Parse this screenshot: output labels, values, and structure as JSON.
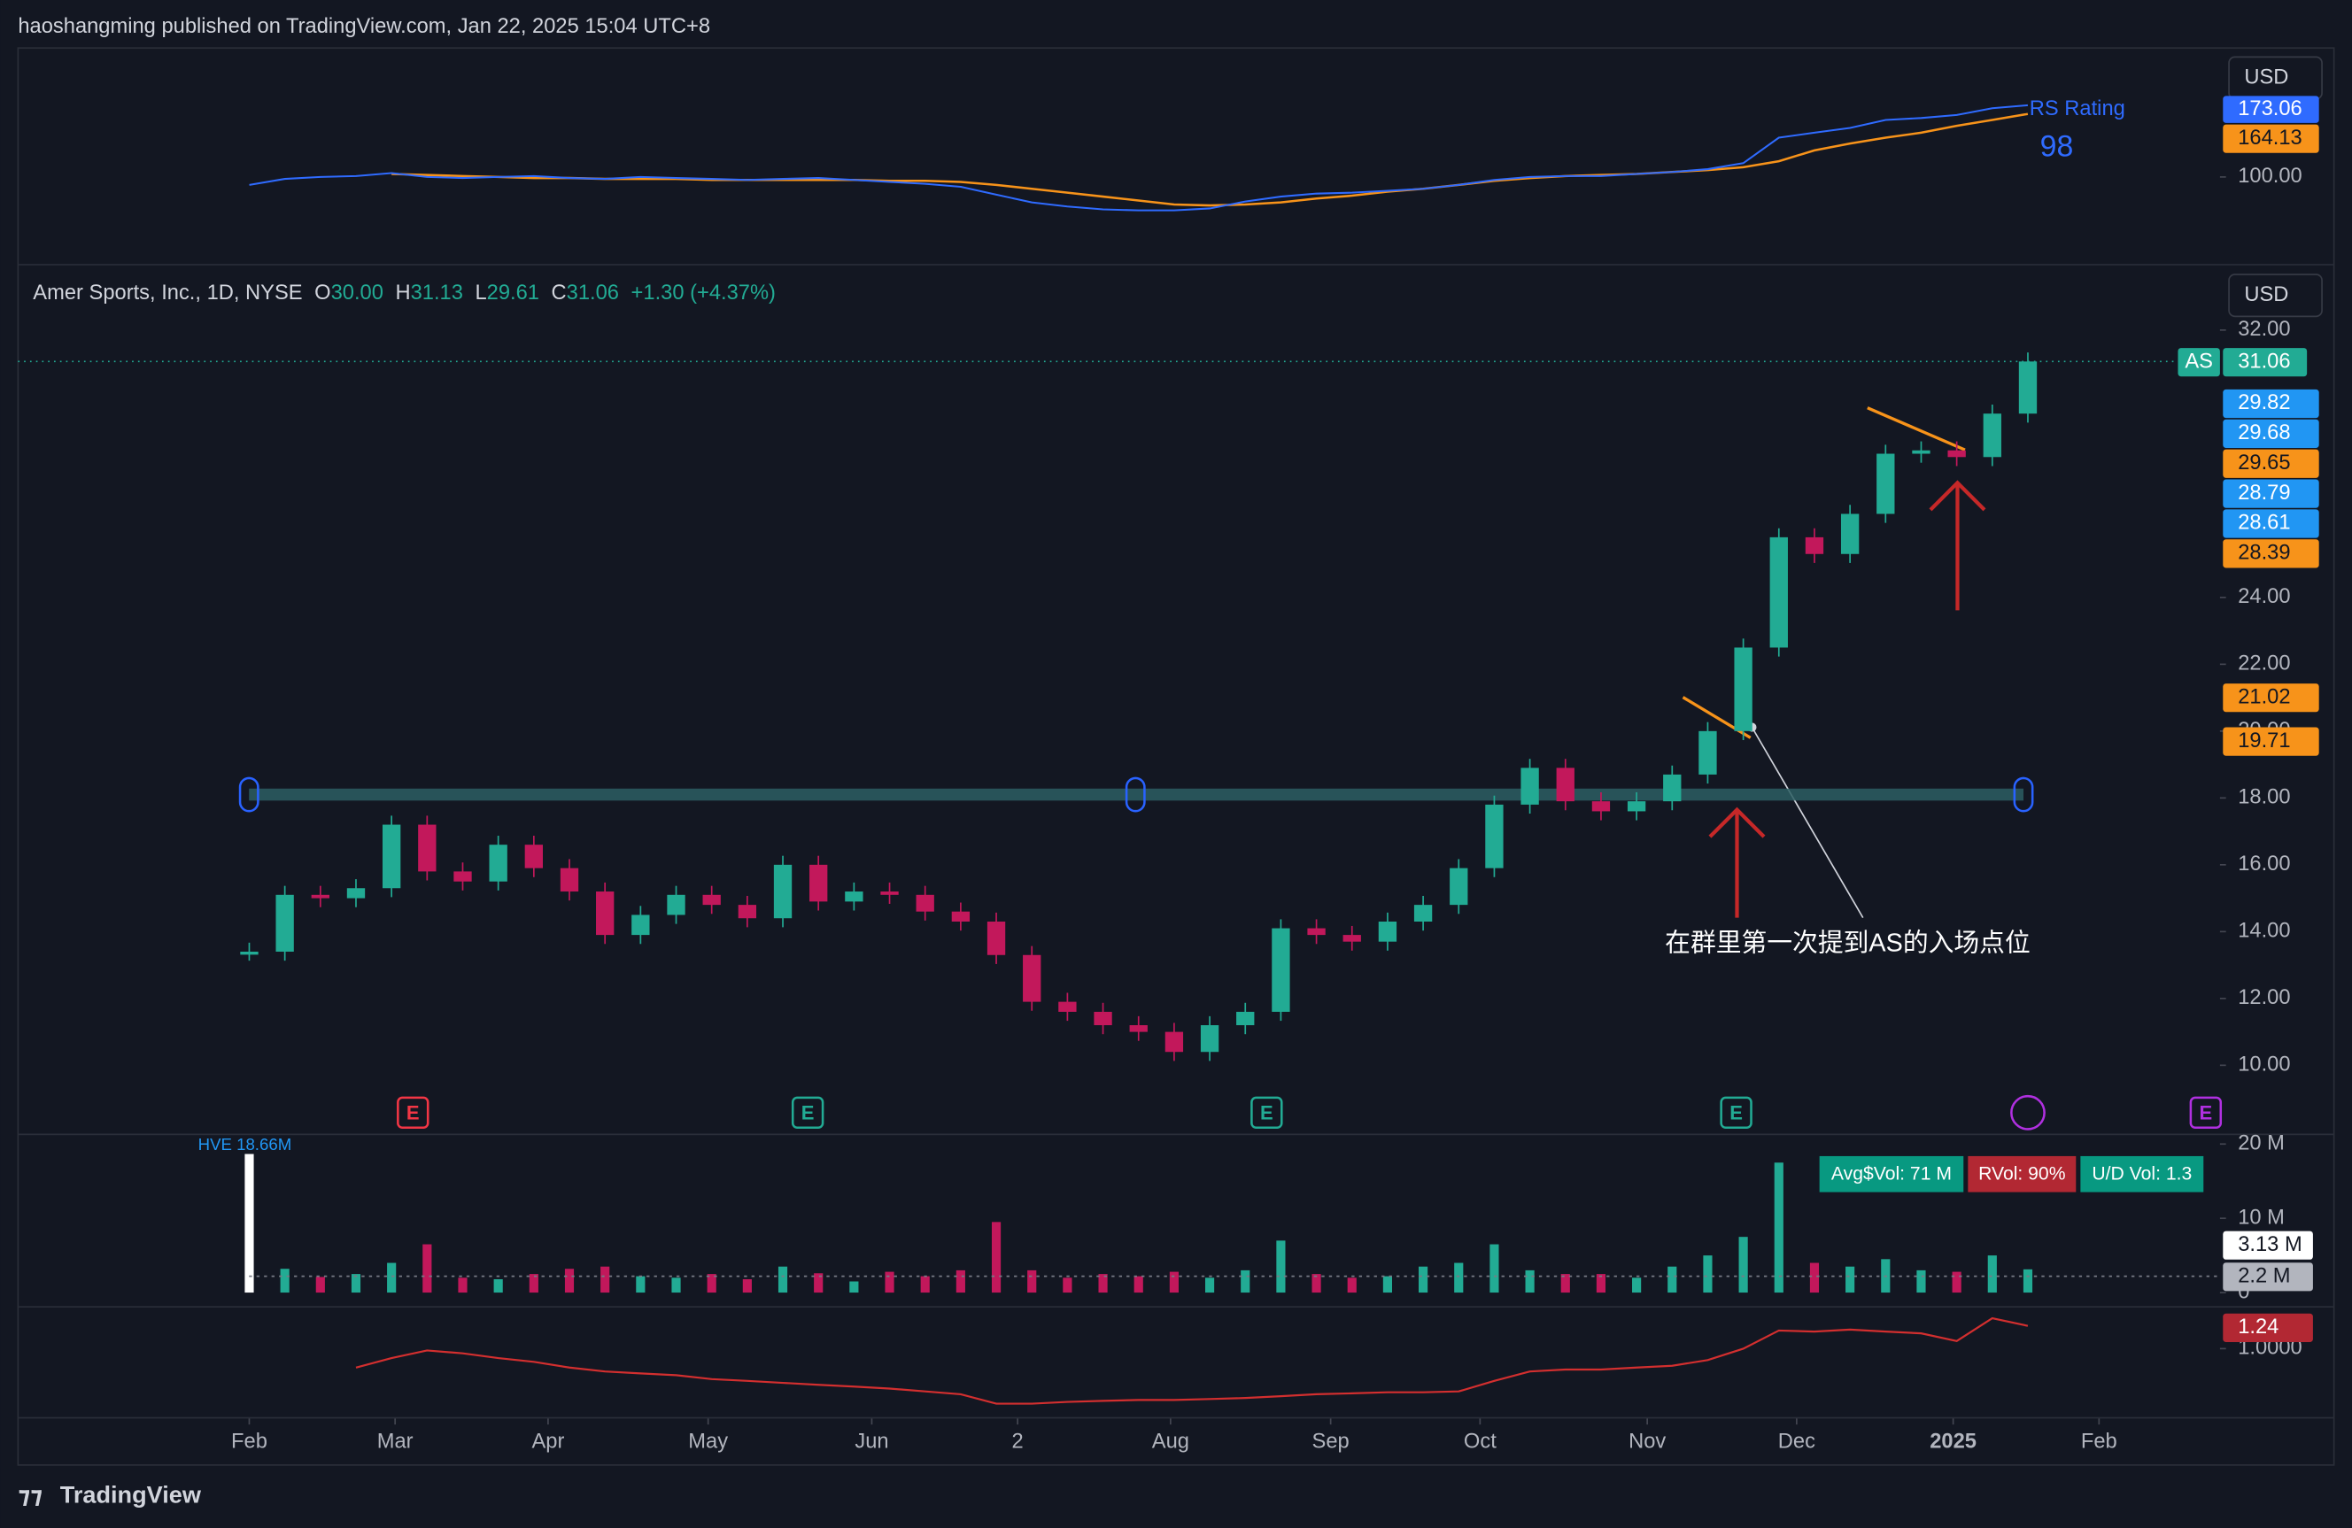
{
  "publisher": "haoshangming published on TradingView.com, Jan 22, 2025 15:04 UTC+8",
  "footer": "TradingView",
  "chart_data": {
    "type": "candlestick",
    "currency": "USD",
    "legend": {
      "symbol": "Amer Sports, Inc., 1D, NYSE",
      "o_label": "O",
      "open": "30.00",
      "h_label": "H",
      "high": "31.13",
      "l_label": "L",
      "low": "29.61",
      "c_label": "C",
      "close": "31.06",
      "change": "+1.30 (+4.37%)"
    },
    "up_color": "#22ab94",
    "down_color": "#c2185b",
    "x": [
      0,
      1,
      2,
      3,
      4,
      5,
      6,
      7,
      8,
      9,
      10,
      11,
      12,
      13,
      14,
      15,
      16,
      17,
      18,
      19,
      20,
      21,
      22,
      23,
      24,
      25,
      26,
      27,
      28,
      29,
      30,
      31,
      32,
      33,
      34,
      35,
      36,
      37,
      38,
      39,
      40,
      41,
      42,
      43,
      44,
      45,
      46,
      47,
      48,
      49,
      50
    ],
    "values": [
      13.4,
      15.1,
      15.0,
      15.3,
      17.2,
      15.8,
      15.5,
      16.6,
      15.9,
      15.2,
      13.9,
      14.5,
      15.1,
      14.8,
      14.4,
      16.0,
      14.9,
      15.2,
      15.1,
      14.6,
      14.3,
      13.3,
      11.9,
      11.6,
      11.2,
      11.0,
      10.4,
      11.2,
      11.6,
      14.1,
      13.9,
      13.7,
      14.3,
      14.8,
      15.9,
      17.8,
      18.9,
      17.9,
      17.6,
      17.9,
      18.7,
      20.0,
      22.5,
      25.8,
      25.3,
      26.5,
      28.3,
      28.4,
      28.2,
      29.5,
      31.06
    ],
    "xlim": [
      -6.5,
      55.4
    ],
    "xticks": [
      {
        "value": 0,
        "label": "Feb"
      },
      {
        "value": 4.1,
        "label": "Mar"
      },
      {
        "value": 8.4,
        "label": "Apr"
      },
      {
        "value": 12.9,
        "label": "May"
      },
      {
        "value": 17.5,
        "label": "Jun"
      },
      {
        "value": 21.6,
        "label": "2"
      },
      {
        "value": 25.9,
        "label": "Aug"
      },
      {
        "value": 30.4,
        "label": "Sep"
      },
      {
        "value": 34.6,
        "label": "Oct"
      },
      {
        "value": 39.3,
        "label": "Nov"
      },
      {
        "value": 43.5,
        "label": "Dec"
      },
      {
        "value": 47.9,
        "label": "2025"
      },
      {
        "value": 52.0,
        "label": "Feb"
      }
    ],
    "ylim": [
      8.0,
      33.8
    ],
    "yticks": [
      {
        "value": 10,
        "label": "10.00"
      },
      {
        "value": 12,
        "label": "12.00"
      },
      {
        "value": 14,
        "label": "14.00"
      },
      {
        "value": 16,
        "label": "16.00"
      },
      {
        "value": 18,
        "label": "18.00"
      },
      {
        "value": 20,
        "label": "20.00"
      },
      {
        "value": 22,
        "label": "22.00"
      },
      {
        "value": 24,
        "label": "24.00"
      },
      {
        "value": 32,
        "label": "32.00"
      }
    ],
    "last_label": "AS",
    "price_labels": [
      {
        "value": 29.82,
        "color": "#2196f3"
      },
      {
        "value": 29.68,
        "color": "#2196f3"
      },
      {
        "value": 29.65,
        "color": "#f7931a"
      },
      {
        "value": 28.79,
        "color": "#2196f3"
      },
      {
        "value": 28.61,
        "color": "#2196f3"
      },
      {
        "value": 28.39,
        "color": "#f7931a"
      },
      {
        "value": 21.02,
        "color": "#f7931a"
      },
      {
        "value": 19.71,
        "color": "#f7931a"
      }
    ],
    "support": 18.1,
    "events": [
      {
        "x": 4.6,
        "label": "E",
        "color": "#f23645"
      },
      {
        "x": 15.7,
        "label": "E",
        "color": "#22ab94"
      },
      {
        "x": 28.6,
        "label": "E",
        "color": "#22ab94"
      },
      {
        "x": 41.8,
        "label": "E",
        "color": "#22ab94"
      },
      {
        "x": 55.0,
        "label": "E",
        "color": "#b030e0"
      }
    ],
    "annotation": "在群里第一次提到AS的入场点位",
    "rs_panel": {
      "currency": "USD",
      "title": "RS Rating",
      "rating": 98,
      "ylim": [
        13,
        231.3
      ],
      "yticks": [
        {
          "value": 100,
          "label": "100.00"
        }
      ],
      "rs": {
        "color": "#2f6bff",
        "values": [
          92,
          98,
          100,
          101,
          104,
          100,
          99,
          100,
          101,
          99,
          98,
          100,
          99,
          98,
          97,
          98,
          99,
          97,
          95,
          93,
          90,
          82,
          74,
          70,
          67,
          66,
          66,
          68,
          75,
          80,
          83,
          84,
          86,
          88,
          92,
          97,
          100,
          101,
          101,
          103,
          105,
          108,
          114,
          140,
          145,
          150,
          158,
          160,
          163,
          170,
          173.06
        ]
      },
      "rs_ma": {
        "color": "#f7931a",
        "values": [
          null,
          null,
          null,
          null,
          103,
          102,
          101,
          100,
          99,
          99,
          98,
          98,
          98,
          97,
          97,
          97,
          97,
          97,
          96,
          96,
          95,
          92,
          88,
          84,
          80,
          76,
          72,
          71,
          72,
          74,
          78,
          81,
          85,
          88,
          92,
          96,
          99,
          101,
          102,
          103,
          105,
          107,
          110,
          116,
          127,
          134,
          140,
          145,
          152,
          158,
          164.13
        ]
      }
    },
    "volume_panel": {
      "hve": "HVE 18.66M",
      "badges": [
        {
          "text": "Avg$Vol: 71 M",
          "color": "#089981"
        },
        {
          "text": "RVol: 90%",
          "color": "#b22833"
        },
        {
          "text": "U/D Vol: 1.3",
          "color": "#089981"
        }
      ],
      "ylim": [
        0,
        21.2
      ],
      "yticks": [
        {
          "value": 20,
          "label": "20 M"
        },
        {
          "value": 10,
          "label": "10 M"
        },
        0
      ],
      "values": [
        18.66,
        3.2,
        2.1,
        2.5,
        4.0,
        6.5,
        2.0,
        1.8,
        2.5,
        3.2,
        3.5,
        2.2,
        2.0,
        2.5,
        1.8,
        3.5,
        2.6,
        1.5,
        2.8,
        2.2,
        3.0,
        9.5,
        3.0,
        2.0,
        2.5,
        2.2,
        2.8,
        2.0,
        3.0,
        7.0,
        2.5,
        2.0,
        2.2,
        3.5,
        4.0,
        6.5,
        3.0,
        2.5,
        2.5,
        2.0,
        3.5,
        5.0,
        7.5,
        17.5,
        4.0,
        3.5,
        4.5,
        3.0,
        2.8,
        5.0,
        3.13
      ],
      "last_value_label": "3.13 M",
      "average": 2.2,
      "average_label": "2.2 M"
    },
    "ratio_panel": {
      "color": "#d32f2f",
      "ylim": [
        0.28,
        1.432
      ],
      "yticks": [
        {
          "value": 1,
          "label": "1.0000"
        }
      ],
      "values": [
        null,
        null,
        null,
        0.8,
        0.9,
        0.98,
        0.95,
        0.9,
        0.86,
        0.8,
        0.76,
        0.74,
        0.72,
        0.68,
        0.66,
        0.64,
        0.62,
        0.6,
        0.58,
        0.55,
        0.52,
        0.42,
        0.42,
        0.44,
        0.45,
        0.46,
        0.46,
        0.47,
        0.48,
        0.5,
        0.52,
        0.53,
        0.54,
        0.54,
        0.55,
        0.66,
        0.76,
        0.78,
        0.78,
        0.8,
        0.82,
        0.88,
        1.0,
        1.19,
        1.18,
        1.2,
        1.18,
        1.16,
        1.08,
        1.32,
        1.24
      ]
    }
  }
}
